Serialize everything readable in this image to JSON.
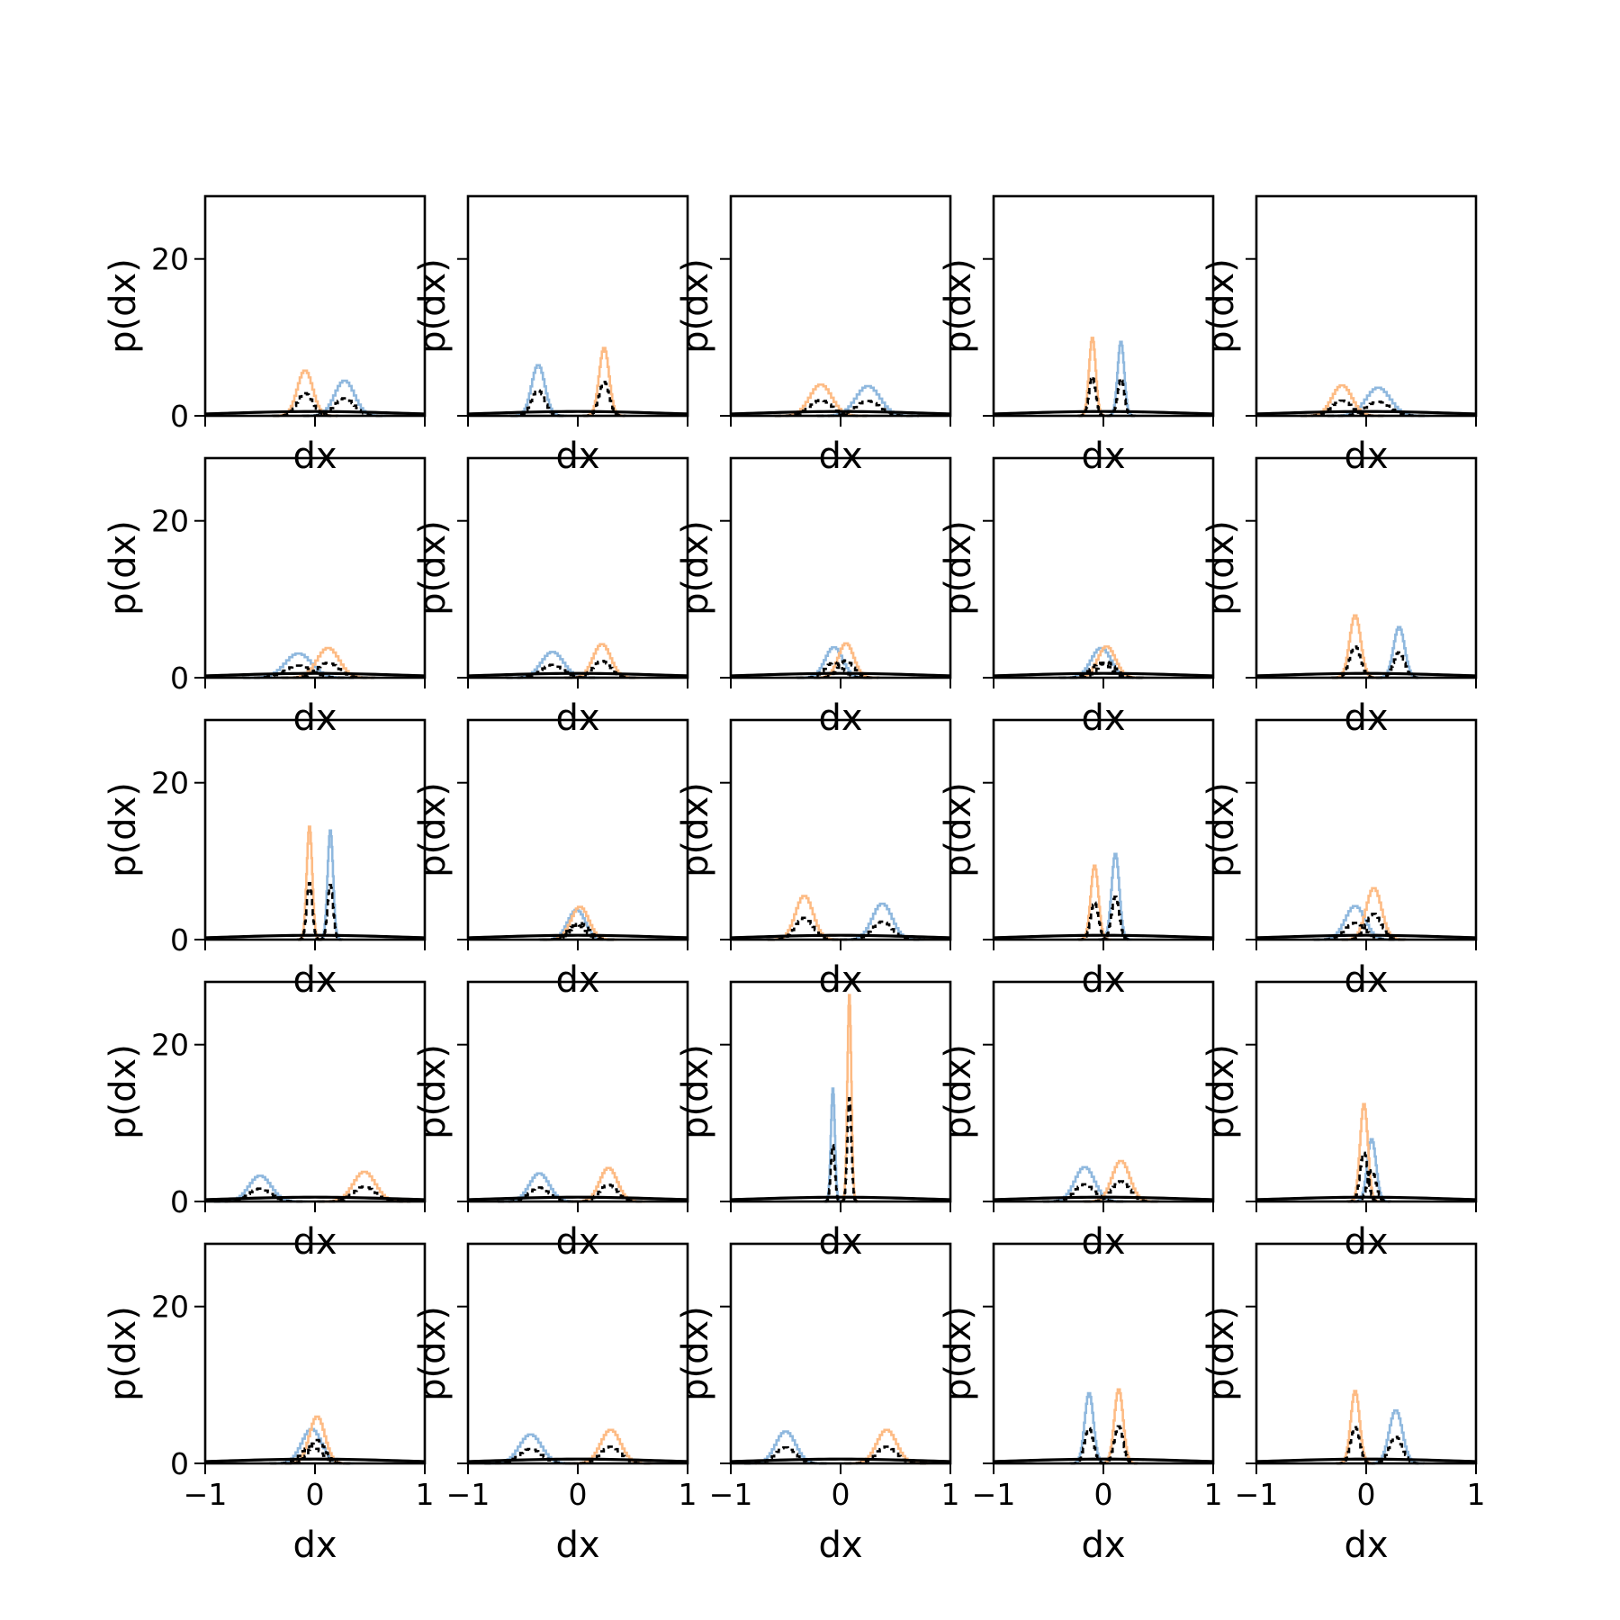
{
  "chart_data": {
    "type": "small-multiples-histogram",
    "rows": 5,
    "cols": 5,
    "xlabel": "dx",
    "ylabel": "p(dx)",
    "xlim": [
      -1,
      1
    ],
    "ylim": [
      0,
      28
    ],
    "xticks": [
      -1,
      0,
      1
    ],
    "xtick_labels": [
      "−1",
      "0",
      "1"
    ],
    "yticks": [
      0,
      20
    ],
    "ytick_labels": [
      "0",
      "20"
    ],
    "series_colors": {
      "blue": "#8fb8de",
      "orange": "#fdbb84",
      "dashed": "#000000",
      "baseline": "#000000"
    },
    "panels": [
      {
        "row": 0,
        "col": 0,
        "blue": {
          "mu": 0.27,
          "sigma": 0.09,
          "peak": 4.5
        },
        "orange": {
          "mu": -0.09,
          "sigma": 0.07,
          "peak": 5.8
        }
      },
      {
        "row": 0,
        "col": 1,
        "blue": {
          "mu": -0.36,
          "sigma": 0.06,
          "peak": 6.5
        },
        "orange": {
          "mu": 0.24,
          "sigma": 0.045,
          "peak": 8.7
        }
      },
      {
        "row": 0,
        "col": 2,
        "blue": {
          "mu": 0.25,
          "sigma": 0.11,
          "peak": 3.8
        },
        "orange": {
          "mu": -0.18,
          "sigma": 0.1,
          "peak": 4.0
        }
      },
      {
        "row": 0,
        "col": 3,
        "blue": {
          "mu": 0.16,
          "sigma": 0.03,
          "peak": 9.5
        },
        "orange": {
          "mu": -0.1,
          "sigma": 0.03,
          "peak": 10.0
        }
      },
      {
        "row": 0,
        "col": 4,
        "blue": {
          "mu": 0.11,
          "sigma": 0.11,
          "peak": 3.6
        },
        "orange": {
          "mu": -0.22,
          "sigma": 0.09,
          "peak": 3.9
        }
      },
      {
        "row": 1,
        "col": 0,
        "blue": {
          "mu": -0.15,
          "sigma": 0.12,
          "peak": 3.1
        },
        "orange": {
          "mu": 0.12,
          "sigma": 0.1,
          "peak": 3.8
        }
      },
      {
        "row": 1,
        "col": 1,
        "blue": {
          "mu": -0.23,
          "sigma": 0.1,
          "peak": 3.3
        },
        "orange": {
          "mu": 0.22,
          "sigma": 0.08,
          "peak": 4.3
        }
      },
      {
        "row": 1,
        "col": 2,
        "blue": {
          "mu": -0.06,
          "sigma": 0.08,
          "peak": 3.9
        },
        "orange": {
          "mu": 0.05,
          "sigma": 0.07,
          "peak": 4.4
        }
      },
      {
        "row": 1,
        "col": 3,
        "blue": {
          "mu": -0.02,
          "sigma": 0.09,
          "peak": 3.8
        },
        "orange": {
          "mu": 0.03,
          "sigma": 0.08,
          "peak": 4.0
        }
      },
      {
        "row": 1,
        "col": 4,
        "blue": {
          "mu": 0.3,
          "sigma": 0.05,
          "peak": 6.5
        },
        "orange": {
          "mu": -0.1,
          "sigma": 0.05,
          "peak": 8.0
        }
      },
      {
        "row": 2,
        "col": 0,
        "blue": {
          "mu": 0.14,
          "sigma": 0.025,
          "peak": 14.0
        },
        "orange": {
          "mu": -0.05,
          "sigma": 0.025,
          "peak": 14.5
        }
      },
      {
        "row": 2,
        "col": 1,
        "blue": {
          "mu": -0.01,
          "sigma": 0.08,
          "peak": 3.8
        },
        "orange": {
          "mu": 0.02,
          "sigma": 0.08,
          "peak": 4.2
        }
      },
      {
        "row": 2,
        "col": 2,
        "blue": {
          "mu": 0.38,
          "sigma": 0.09,
          "peak": 4.6
        },
        "orange": {
          "mu": -0.33,
          "sigma": 0.08,
          "peak": 5.6
        }
      },
      {
        "row": 2,
        "col": 3,
        "blue": {
          "mu": 0.11,
          "sigma": 0.035,
          "peak": 11.0
        },
        "orange": {
          "mu": -0.08,
          "sigma": 0.035,
          "peak": 9.5
        }
      },
      {
        "row": 2,
        "col": 4,
        "blue": {
          "mu": -0.1,
          "sigma": 0.09,
          "peak": 4.3
        },
        "orange": {
          "mu": 0.07,
          "sigma": 0.07,
          "peak": 6.6
        }
      },
      {
        "row": 3,
        "col": 0,
        "blue": {
          "mu": -0.5,
          "sigma": 0.1,
          "peak": 3.3
        },
        "orange": {
          "mu": 0.45,
          "sigma": 0.1,
          "peak": 3.8
        }
      },
      {
        "row": 3,
        "col": 1,
        "blue": {
          "mu": -0.35,
          "sigma": 0.09,
          "peak": 3.6
        },
        "orange": {
          "mu": 0.28,
          "sigma": 0.08,
          "peak": 4.3
        }
      },
      {
        "row": 3,
        "col": 2,
        "blue": {
          "mu": -0.07,
          "sigma": 0.018,
          "peak": 14.5
        },
        "orange": {
          "mu": 0.08,
          "sigma": 0.018,
          "peak": 26.5
        }
      },
      {
        "row": 3,
        "col": 3,
        "blue": {
          "mu": -0.17,
          "sigma": 0.09,
          "peak": 4.4
        },
        "orange": {
          "mu": 0.16,
          "sigma": 0.08,
          "peak": 5.2
        }
      },
      {
        "row": 3,
        "col": 4,
        "blue": {
          "mu": 0.05,
          "sigma": 0.04,
          "peak": 8.0
        },
        "orange": {
          "mu": -0.02,
          "sigma": 0.035,
          "peak": 12.5
        }
      },
      {
        "row": 4,
        "col": 0,
        "blue": {
          "mu": -0.03,
          "sigma": 0.09,
          "peak": 4.4
        },
        "orange": {
          "mu": 0.02,
          "sigma": 0.07,
          "peak": 6.0
        }
      },
      {
        "row": 4,
        "col": 1,
        "blue": {
          "mu": -0.43,
          "sigma": 0.1,
          "peak": 3.7
        },
        "orange": {
          "mu": 0.3,
          "sigma": 0.09,
          "peak": 4.3
        }
      },
      {
        "row": 4,
        "col": 2,
        "blue": {
          "mu": -0.5,
          "sigma": 0.09,
          "peak": 4.1
        },
        "orange": {
          "mu": 0.42,
          "sigma": 0.09,
          "peak": 4.3
        }
      },
      {
        "row": 4,
        "col": 3,
        "blue": {
          "mu": -0.13,
          "sigma": 0.04,
          "peak": 9.0
        },
        "orange": {
          "mu": 0.14,
          "sigma": 0.04,
          "peak": 9.5
        }
      },
      {
        "row": 4,
        "col": 4,
        "blue": {
          "mu": 0.27,
          "sigma": 0.06,
          "peak": 6.8
        },
        "orange": {
          "mu": -0.1,
          "sigma": 0.04,
          "peak": 9.3
        }
      }
    ]
  }
}
